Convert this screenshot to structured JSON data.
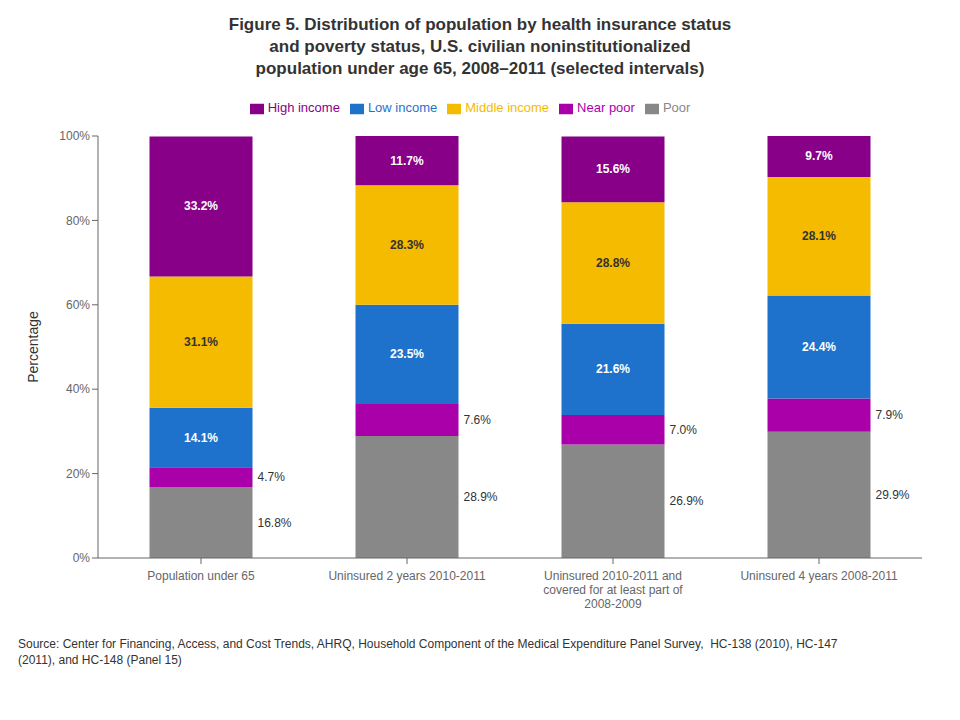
{
  "chart_data": {
    "type": "bar",
    "stacked": true,
    "title": "Figure 5. Distribution of population by health insurance status\nand poverty status, U.S. civilian noninstitutionalized\npopulation under age 65, 2008–2011 (selected intervals)",
    "ylabel": "Percentage",
    "source": "Source: Center for Financing, Access, and Cost Trends, AHRQ, Household Component of the Medical Expenditure Panel Survey,  HC-138 (2010), HC-147\n(2011), and HC-148 (Panel 15)",
    "categories": [
      "Population under 65",
      "Uninsured 2 years 2010-2011",
      "Uninsured 2010-2011 and\ncovered for at least part of\n2008-2009",
      "Uninsured 4 years 2008-2011"
    ],
    "series": [
      {
        "name": "Poor",
        "color": "#888888",
        "values": [
          16.8,
          28.9,
          26.9,
          29.9
        ],
        "value_labels": [
          "16.8%",
          "28.9%",
          "26.9%",
          "29.9%"
        ]
      },
      {
        "name": "Near poor",
        "color": "#aa00aa",
        "values": [
          4.7,
          7.6,
          7.0,
          7.9
        ],
        "value_labels": [
          "4.7%",
          "7.6%",
          "7.0%",
          "7.9%"
        ]
      },
      {
        "name": "Low income",
        "color": "#1e72cc",
        "values": [
          14.1,
          23.5,
          21.6,
          24.4
        ],
        "value_labels": [
          "14.1%",
          "23.5%",
          "21.6%",
          "24.4%"
        ]
      },
      {
        "name": "Middle income",
        "color": "#f5bb00",
        "values": [
          31.1,
          28.3,
          28.8,
          28.1
        ],
        "value_labels": [
          "31.1%",
          "28.3%",
          "28.8%",
          "28.1%"
        ]
      },
      {
        "name": "High income",
        "color": "#880088",
        "values": [
          33.2,
          11.7,
          15.6,
          9.7
        ],
        "value_labels": [
          "33.2%",
          "11.7%",
          "15.6%",
          "9.7%"
        ]
      }
    ],
    "ylim": [
      0,
      100
    ],
    "yticks": [
      {
        "value": 0,
        "label": "0%"
      },
      {
        "value": 20,
        "label": "20%"
      },
      {
        "value": 40,
        "label": "40%"
      },
      {
        "value": 60,
        "label": "60%"
      },
      {
        "value": 80,
        "label": "80%"
      },
      {
        "value": 100,
        "label": "100%"
      }
    ],
    "grid": false,
    "legend": "top",
    "data_labels": true
  }
}
